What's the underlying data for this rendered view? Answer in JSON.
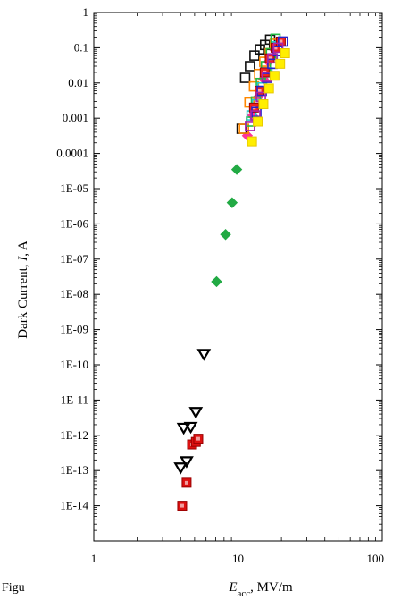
{
  "chart_data": {
    "type": "scatter",
    "title": "",
    "xscale": "log",
    "yscale": "log",
    "xlim": [
      1,
      100
    ],
    "ylim": [
      1e-15,
      1
    ],
    "xlabel": {
      "symbol": "E",
      "subscript": "acc",
      "rest": ", MV/m"
    },
    "ylabel": {
      "pre": "Dark Current, ",
      "symbol": "I",
      "post": ", A"
    },
    "x_ticks": [
      {
        "value": 1,
        "label": "1"
      },
      {
        "value": 10,
        "label": "10"
      },
      {
        "value": 100,
        "label": "100"
      }
    ],
    "y_ticks": [
      {
        "value": 1,
        "label": "1"
      },
      {
        "value": 0.1,
        "label": "0.1"
      },
      {
        "value": 0.01,
        "label": "0.01"
      },
      {
        "value": 0.001,
        "label": "0.001"
      },
      {
        "value": 0.0001,
        "label": "0.0001"
      },
      {
        "value": 1e-05,
        "label": "1E-05"
      },
      {
        "value": 1e-06,
        "label": "1E-06"
      },
      {
        "value": 1e-07,
        "label": "1E-07"
      },
      {
        "value": 1e-08,
        "label": "1E-08"
      },
      {
        "value": 1e-09,
        "label": "1E-09"
      },
      {
        "value": 1e-10,
        "label": "1E-10"
      },
      {
        "value": 1e-11,
        "label": "1E-11"
      },
      {
        "value": 1e-12,
        "label": "1E-12"
      },
      {
        "value": 1e-13,
        "label": "1E-13"
      },
      {
        "value": 1e-14,
        "label": "1E-14"
      }
    ],
    "grid": false,
    "legend": "none",
    "series": [
      {
        "marker": "triangle-down",
        "color": "#000000",
        "points": [
          [
            4.0,
            1.2e-13
          ],
          [
            4.4,
            1.8e-13
          ],
          [
            4.2,
            1.6e-12
          ],
          [
            4.7,
            1.7e-12
          ],
          [
            5.1,
            4.5e-12
          ],
          [
            5.8,
            2e-10
          ]
        ]
      },
      {
        "marker": "square-filled",
        "color": "#dd1111",
        "points": [
          [
            4.1,
            1e-14
          ],
          [
            4.4,
            4.5e-14
          ],
          [
            4.8,
            5.5e-13
          ],
          [
            5.1,
            6.5e-13
          ],
          [
            5.3,
            8e-13
          ]
        ]
      },
      {
        "marker": "diamond",
        "color": "#22aa44",
        "points": [
          [
            7.1,
            2.3e-08
          ],
          [
            8.2,
            5e-07
          ],
          [
            9.1,
            4e-06
          ],
          [
            9.8,
            3.5e-05
          ]
        ]
      },
      {
        "marker": "diamond",
        "color": "#ff3399",
        "points": [
          [
            11.6,
            0.00032
          ],
          [
            12.6,
            0.0012
          ],
          [
            13.8,
            0.004
          ],
          [
            15.0,
            0.013
          ],
          [
            16.3,
            0.04
          ],
          [
            17.8,
            0.09
          ],
          [
            19.5,
            0.15
          ]
        ]
      },
      {
        "marker": "square",
        "color": "#111111",
        "points": [
          [
            10.6,
            0.0005
          ],
          [
            11.2,
            0.014
          ],
          [
            12.1,
            0.03
          ],
          [
            13.0,
            0.06
          ],
          [
            14.2,
            0.09
          ],
          [
            15.4,
            0.12
          ],
          [
            16.7,
            0.17
          ]
        ]
      },
      {
        "marker": "square",
        "color": "#ff8800",
        "points": [
          [
            11.0,
            0.0005
          ],
          [
            12.0,
            0.0028
          ],
          [
            12.9,
            0.008
          ],
          [
            14.0,
            0.018
          ],
          [
            15.2,
            0.04
          ],
          [
            16.6,
            0.07
          ],
          [
            18.0,
            0.13
          ]
        ]
      },
      {
        "marker": "square",
        "color": "#22bb44",
        "points": [
          [
            12.3,
            0.0008
          ],
          [
            13.3,
            0.003
          ],
          [
            14.4,
            0.01
          ],
          [
            15.6,
            0.03
          ],
          [
            16.9,
            0.07
          ],
          [
            18.2,
            0.18
          ]
        ]
      },
      {
        "marker": "square",
        "color": "#22cccc",
        "points": [
          [
            12.4,
            0.0012
          ],
          [
            13.5,
            0.0025
          ],
          [
            14.7,
            0.0075
          ],
          [
            16.0,
            0.02
          ],
          [
            17.4,
            0.05
          ],
          [
            18.8,
            0.11
          ]
        ]
      },
      {
        "marker": "square-filled",
        "color": "#ee2222",
        "points": [
          [
            12.9,
            0.002
          ],
          [
            14.1,
            0.006
          ],
          [
            15.3,
            0.02
          ],
          [
            16.6,
            0.05
          ],
          [
            18.2,
            0.1
          ],
          [
            19.8,
            0.15
          ]
        ]
      },
      {
        "marker": "square",
        "color": "#2222cc",
        "points": [
          [
            13.4,
            0.0015
          ],
          [
            14.6,
            0.006
          ],
          [
            15.9,
            0.014
          ],
          [
            17.3,
            0.035
          ],
          [
            18.9,
            0.08
          ],
          [
            20.5,
            0.15
          ]
        ]
      },
      {
        "marker": "square",
        "color": "#aa22aa",
        "points": [
          [
            12.1,
            0.0006
          ],
          [
            13.2,
            0.0012
          ],
          [
            14.4,
            0.004
          ],
          [
            15.8,
            0.015
          ],
          [
            17.3,
            0.05
          ],
          [
            19.0,
            0.1
          ]
        ]
      },
      {
        "marker": "square-filled",
        "color": "#ffee00",
        "points": [
          [
            12.5,
            0.00022
          ],
          [
            13.7,
            0.0008
          ],
          [
            15.0,
            0.0025
          ],
          [
            16.4,
            0.007
          ],
          [
            17.9,
            0.016
          ],
          [
            19.6,
            0.035
          ],
          [
            21.2,
            0.07
          ]
        ]
      }
    ]
  },
  "caption": "Figu"
}
